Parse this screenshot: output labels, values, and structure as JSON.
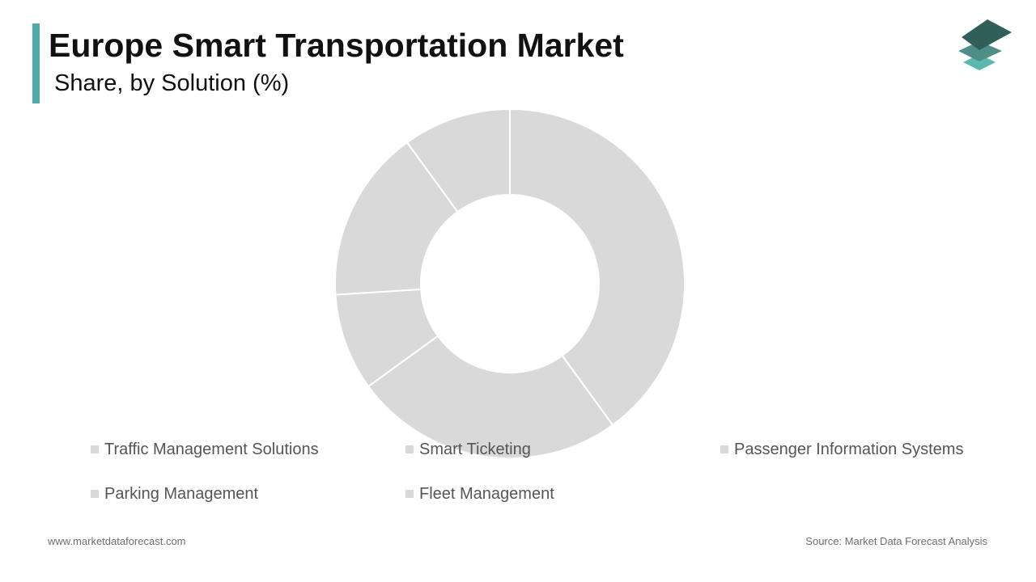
{
  "header": {
    "title": "Europe Smart Transportation Market",
    "subtitle": "Share, by Solution (%)",
    "accent_color": "#4eaca6"
  },
  "logo": {
    "icon": "layered-stack-icon",
    "colors": [
      "#2f5f58",
      "#4d8e87",
      "#5bb8b1"
    ]
  },
  "chart_data": {
    "type": "pie",
    "donut": true,
    "categories": [
      "Traffic Management Solutions",
      "Smart Ticketing",
      "Passenger Information Systems",
      "Parking Management",
      "Fleet Management"
    ],
    "values": [
      40,
      25,
      9,
      16,
      10
    ],
    "colors": [
      "#d9d9d9",
      "#d9d9d9",
      "#d9d9d9",
      "#d9d9d9",
      "#d9d9d9"
    ],
    "legend_position": "bottom"
  },
  "footer": {
    "website": "www.marketdataforecast.com",
    "source": "Source: Market Data Forecast Analysis"
  }
}
